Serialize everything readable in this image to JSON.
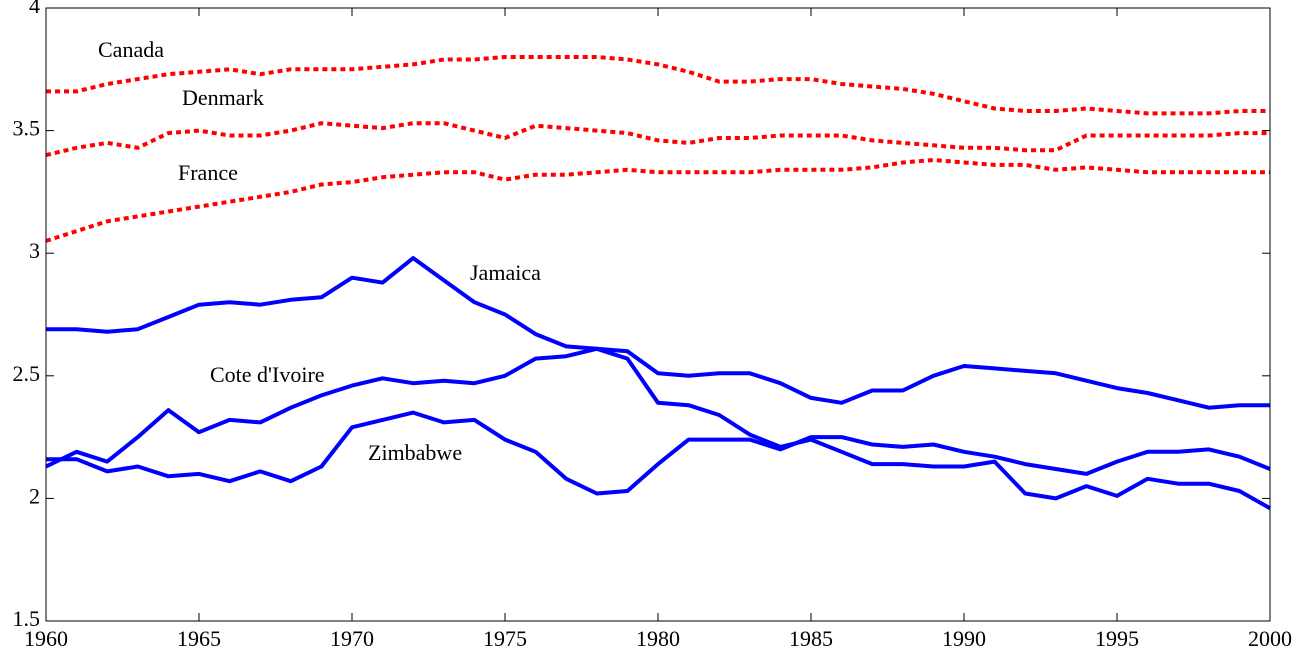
{
  "chart_data": {
    "type": "line",
    "x": [
      1960,
      1961,
      1962,
      1963,
      1964,
      1965,
      1966,
      1967,
      1968,
      1969,
      1970,
      1971,
      1972,
      1973,
      1974,
      1975,
      1976,
      1977,
      1978,
      1979,
      1980,
      1981,
      1982,
      1983,
      1984,
      1985,
      1986,
      1987,
      1988,
      1989,
      1990,
      1991,
      1992,
      1993,
      1994,
      1995,
      1996,
      1997,
      1998,
      1999,
      2000
    ],
    "series": [
      {
        "name": "Canada",
        "color": "#ff0000",
        "line_style": "dotted",
        "values": [
          3.66,
          3.66,
          3.69,
          3.71,
          3.73,
          3.74,
          3.75,
          3.73,
          3.75,
          3.75,
          3.75,
          3.76,
          3.77,
          3.79,
          3.79,
          3.8,
          3.8,
          3.8,
          3.8,
          3.79,
          3.77,
          3.74,
          3.7,
          3.7,
          3.71,
          3.71,
          3.69,
          3.68,
          3.67,
          3.65,
          3.62,
          3.59,
          3.58,
          3.58,
          3.59,
          3.58,
          3.57,
          3.57,
          3.57,
          3.58,
          3.58
        ]
      },
      {
        "name": "Denmark",
        "color": "#ff0000",
        "line_style": "dotted",
        "values": [
          3.4,
          3.43,
          3.45,
          3.43,
          3.49,
          3.5,
          3.48,
          3.48,
          3.5,
          3.53,
          3.52,
          3.51,
          3.53,
          3.53,
          3.5,
          3.47,
          3.52,
          3.51,
          3.5,
          3.49,
          3.46,
          3.45,
          3.47,
          3.47,
          3.48,
          3.48,
          3.48,
          3.46,
          3.45,
          3.44,
          3.43,
          3.43,
          3.42,
          3.42,
          3.48,
          3.48,
          3.48,
          3.48,
          3.48,
          3.49,
          3.49
        ]
      },
      {
        "name": "France",
        "color": "#ff0000",
        "line_style": "dotted",
        "values": [
          3.05,
          3.09,
          3.13,
          3.15,
          3.17,
          3.19,
          3.21,
          3.23,
          3.25,
          3.28,
          3.29,
          3.31,
          3.32,
          3.33,
          3.33,
          3.3,
          3.32,
          3.32,
          3.33,
          3.34,
          3.33,
          3.33,
          3.33,
          3.33,
          3.34,
          3.34,
          3.34,
          3.35,
          3.37,
          3.38,
          3.37,
          3.36,
          3.36,
          3.34,
          3.35,
          3.34,
          3.33,
          3.33,
          3.33,
          3.33,
          3.33
        ]
      },
      {
        "name": "Jamaica",
        "color": "#0000ff",
        "line_style": "solid",
        "values": [
          2.69,
          2.69,
          2.68,
          2.69,
          2.74,
          2.79,
          2.8,
          2.79,
          2.81,
          2.82,
          2.9,
          2.88,
          2.98,
          2.89,
          2.8,
          2.75,
          2.67,
          2.62,
          2.61,
          2.57,
          2.39,
          2.38,
          2.34,
          2.26,
          2.21,
          2.24,
          2.19,
          2.14,
          2.14,
          2.13,
          2.13,
          2.15,
          2.02,
          2.0,
          2.05,
          2.01,
          2.08,
          2.06,
          2.06,
          2.03,
          1.96
        ]
      },
      {
        "name": "Cote d'Ivoire",
        "color": "#0000ff",
        "line_style": "solid",
        "values": [
          2.13,
          2.19,
          2.15,
          2.25,
          2.36,
          2.27,
          2.32,
          2.31,
          2.37,
          2.42,
          2.46,
          2.49,
          2.47,
          2.48,
          2.47,
          2.5,
          2.57,
          2.58,
          2.61,
          2.6,
          2.51,
          2.5,
          2.51,
          2.51,
          2.47,
          2.41,
          2.39,
          2.44,
          2.44,
          2.5,
          2.54,
          2.53,
          2.52,
          2.51,
          2.48,
          2.45,
          2.43,
          2.4,
          2.37,
          2.38,
          2.38
        ]
      },
      {
        "name": "Zimbabwe",
        "color": "#0000ff",
        "line_style": "solid",
        "values": [
          2.16,
          2.16,
          2.11,
          2.13,
          2.09,
          2.1,
          2.07,
          2.11,
          2.07,
          2.13,
          2.29,
          2.32,
          2.35,
          2.31,
          2.32,
          2.24,
          2.19,
          2.08,
          2.02,
          2.03,
          2.14,
          2.24,
          2.24,
          2.24,
          2.2,
          2.25,
          2.25,
          2.22,
          2.21,
          2.22,
          2.19,
          2.17,
          2.14,
          2.12,
          2.1,
          2.15,
          2.19,
          2.19,
          2.2,
          2.17,
          2.12
        ]
      }
    ],
    "xlim": [
      1960,
      2000
    ],
    "xticks": [
      1960,
      1965,
      1970,
      1975,
      1980,
      1985,
      1990,
      1995,
      2000
    ],
    "ylim": [
      1.5,
      4
    ],
    "yticks": [
      1.5,
      2,
      2.5,
      3,
      3.5,
      4
    ],
    "grid": false
  }
}
